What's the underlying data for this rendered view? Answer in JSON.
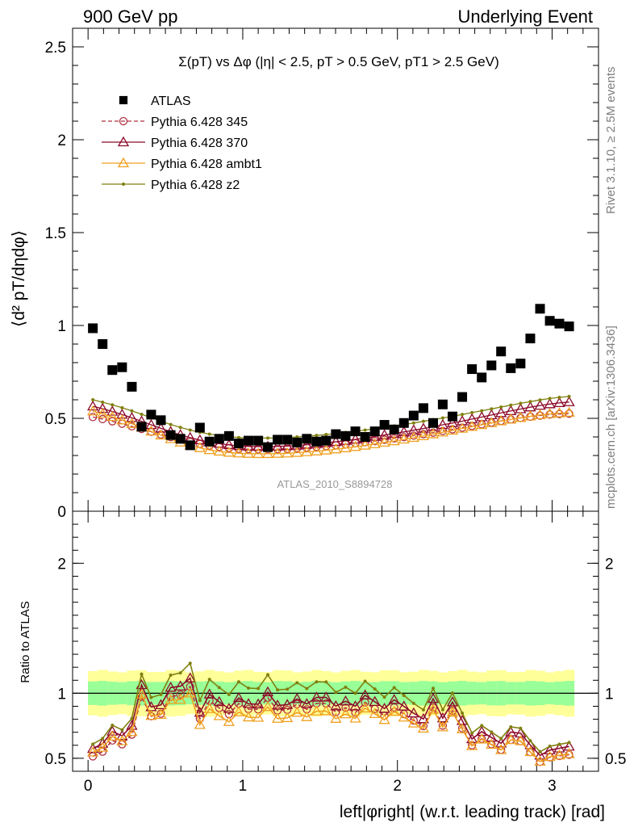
{
  "header": {
    "left": "900 GeV pp",
    "right": "Underlying Event"
  },
  "plot_title": {
    "text": "Σ(pT) vs Δφ (|η| < 2.5, pT > 0.5 GeV, pT1 > 2.5 GeV)"
  },
  "side_labels": {
    "rivet": "Rivet 3.1.10, ≥ 2.5M events",
    "mcplots": "mcplots.cern.ch [arXiv:1306.3436]"
  },
  "analysis_tag": "ATLAS_2010_S8894728",
  "colors": {
    "data": "#000000",
    "p345": "#b03040",
    "p370": "#8b0a2a",
    "ambt1": "#f0a020",
    "z2": "#808010",
    "band_inner": "#99ff99",
    "band_outer": "#ffff99"
  },
  "chart_data": [
    {
      "type": "scatter",
      "panel": "main",
      "ylabel": "⟨d² pT/dηdφ⟩",
      "xlabel": "",
      "xlim": [
        -0.1,
        3.3
      ],
      "ylim": [
        0,
        2.6
      ],
      "yticks": [
        0,
        0.5,
        1,
        1.5,
        2,
        2.5
      ],
      "ytick_labels": [
        "0",
        "0.5",
        "1",
        "1.5",
        "2",
        "2.5"
      ],
      "legend_position": "top-left",
      "x": [
        0.031,
        0.094,
        0.157,
        0.22,
        0.283,
        0.346,
        0.408,
        0.471,
        0.534,
        0.597,
        0.66,
        0.723,
        0.785,
        0.848,
        0.911,
        0.974,
        1.037,
        1.1,
        1.162,
        1.225,
        1.288,
        1.351,
        1.414,
        1.477,
        1.539,
        1.602,
        1.665,
        1.728,
        1.791,
        1.854,
        1.916,
        1.979,
        2.042,
        2.105,
        2.168,
        2.231,
        2.293,
        2.356,
        2.419,
        2.482,
        2.545,
        2.608,
        2.67,
        2.733,
        2.796,
        2.859,
        2.922,
        2.985,
        3.047,
        3.11
      ],
      "series": [
        {
          "name": "ATLAS",
          "marker": "square",
          "values": [
            0.985,
            0.9,
            0.76,
            0.775,
            0.67,
            0.455,
            0.52,
            0.49,
            0.41,
            0.39,
            0.355,
            0.45,
            0.375,
            0.39,
            0.405,
            0.365,
            0.38,
            0.38,
            0.345,
            0.385,
            0.385,
            0.37,
            0.39,
            0.375,
            0.38,
            0.415,
            0.405,
            0.43,
            0.4,
            0.43,
            0.465,
            0.44,
            0.475,
            0.515,
            0.555,
            0.475,
            0.575,
            0.51,
            0.615,
            0.765,
            0.72,
            0.785,
            0.86,
            0.77,
            0.795,
            0.93,
            1.09,
            1.025,
            1.01,
            0.995
          ]
        },
        {
          "name": "Pythia 6.428 345",
          "marker": "circle",
          "dashed": true,
          "values": [
            0.507,
            0.496,
            0.484,
            0.471,
            0.457,
            0.443,
            0.428,
            0.413,
            0.399,
            0.386,
            0.373,
            0.362,
            0.353,
            0.346,
            0.34,
            0.336,
            0.334,
            0.333,
            0.333,
            0.334,
            0.336,
            0.339,
            0.342,
            0.346,
            0.35,
            0.355,
            0.36,
            0.366,
            0.372,
            0.378,
            0.385,
            0.392,
            0.399,
            0.407,
            0.415,
            0.423,
            0.432,
            0.441,
            0.45,
            0.459,
            0.468,
            0.477,
            0.486,
            0.494,
            0.502,
            0.509,
            0.515,
            0.52,
            0.523,
            0.525
          ]
        },
        {
          "name": "Pythia 6.428 370",
          "marker": "triangle",
          "values": [
            0.565,
            0.552,
            0.537,
            0.521,
            0.503,
            0.484,
            0.465,
            0.446,
            0.428,
            0.411,
            0.396,
            0.383,
            0.372,
            0.364,
            0.357,
            0.352,
            0.349,
            0.348,
            0.348,
            0.349,
            0.351,
            0.354,
            0.358,
            0.363,
            0.368,
            0.374,
            0.38,
            0.387,
            0.394,
            0.402,
            0.41,
            0.418,
            0.427,
            0.436,
            0.445,
            0.455,
            0.465,
            0.475,
            0.485,
            0.496,
            0.507,
            0.518,
            0.529,
            0.54,
            0.55,
            0.56,
            0.569,
            0.577,
            0.583,
            0.588
          ]
        },
        {
          "name": "Pythia 6.428 ambt1",
          "marker": "triangle",
          "values": [
            0.538,
            0.524,
            0.508,
            0.49,
            0.471,
            0.451,
            0.43,
            0.409,
            0.389,
            0.371,
            0.355,
            0.341,
            0.33,
            0.322,
            0.316,
            0.312,
            0.31,
            0.309,
            0.309,
            0.31,
            0.312,
            0.315,
            0.319,
            0.323,
            0.328,
            0.334,
            0.34,
            0.347,
            0.354,
            0.362,
            0.37,
            0.378,
            0.387,
            0.396,
            0.405,
            0.415,
            0.425,
            0.435,
            0.445,
            0.455,
            0.465,
            0.475,
            0.485,
            0.494,
            0.503,
            0.511,
            0.518,
            0.524,
            0.528,
            0.531
          ]
        },
        {
          "name": "Pythia 6.428 z2",
          "marker": "dot",
          "values": [
            0.6,
            0.587,
            0.573,
            0.557,
            0.54,
            0.522,
            0.503,
            0.485,
            0.467,
            0.451,
            0.437,
            0.425,
            0.415,
            0.407,
            0.401,
            0.397,
            0.395,
            0.394,
            0.394,
            0.395,
            0.397,
            0.4,
            0.404,
            0.408,
            0.413,
            0.418,
            0.424,
            0.43,
            0.437,
            0.444,
            0.451,
            0.459,
            0.467,
            0.475,
            0.484,
            0.493,
            0.502,
            0.511,
            0.521,
            0.531,
            0.541,
            0.551,
            0.561,
            0.571,
            0.581,
            0.59,
            0.599,
            0.607,
            0.613,
            0.618
          ]
        }
      ]
    },
    {
      "type": "line",
      "panel": "ratio",
      "ylabel": "Ratio to ATLAS",
      "xlabel": "left|φright| (w.r.t. leading track) [rad]",
      "xlim": [
        -0.1,
        3.3
      ],
      "ylim": [
        0.4,
        2.4
      ],
      "yticks": [
        0.5,
        1,
        2
      ],
      "ytick_labels": [
        "0.5",
        "1",
        "2"
      ],
      "xticks": [
        0,
        1,
        2,
        3
      ],
      "xtick_labels": [
        "0",
        "1",
        "2",
        "3"
      ],
      "reference": 1,
      "band_inner_halfwidth": 0.09,
      "band_outer_halfwidth": 0.17,
      "series_note": "ratio = MC / ATLAS per bin"
    }
  ]
}
